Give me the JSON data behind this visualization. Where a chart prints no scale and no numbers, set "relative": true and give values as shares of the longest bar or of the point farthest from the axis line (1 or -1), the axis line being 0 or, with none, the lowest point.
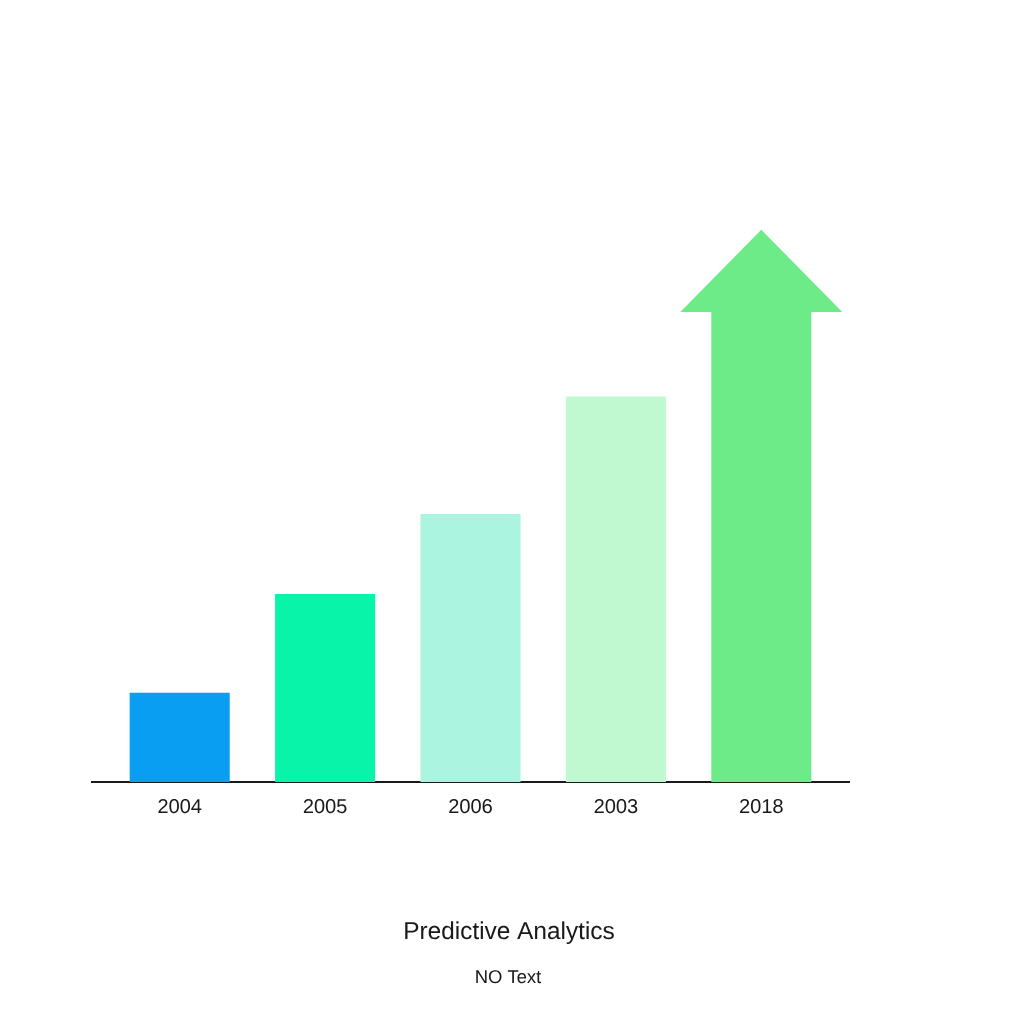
{
  "chart_data": {
    "type": "bar",
    "title": "Predictive Analytics",
    "subtitle": "NO Text",
    "categories": [
      "2004",
      "2005",
      "2006",
      "2003",
      "2018"
    ],
    "values": [
      0.19,
      0.4,
      0.57,
      0.82,
      1
    ],
    "colors": [
      "#0a9ef2",
      "#08f4a8",
      "#aaf4e0",
      "#c0f9d0",
      "#6deb88"
    ],
    "relative": true
  }
}
